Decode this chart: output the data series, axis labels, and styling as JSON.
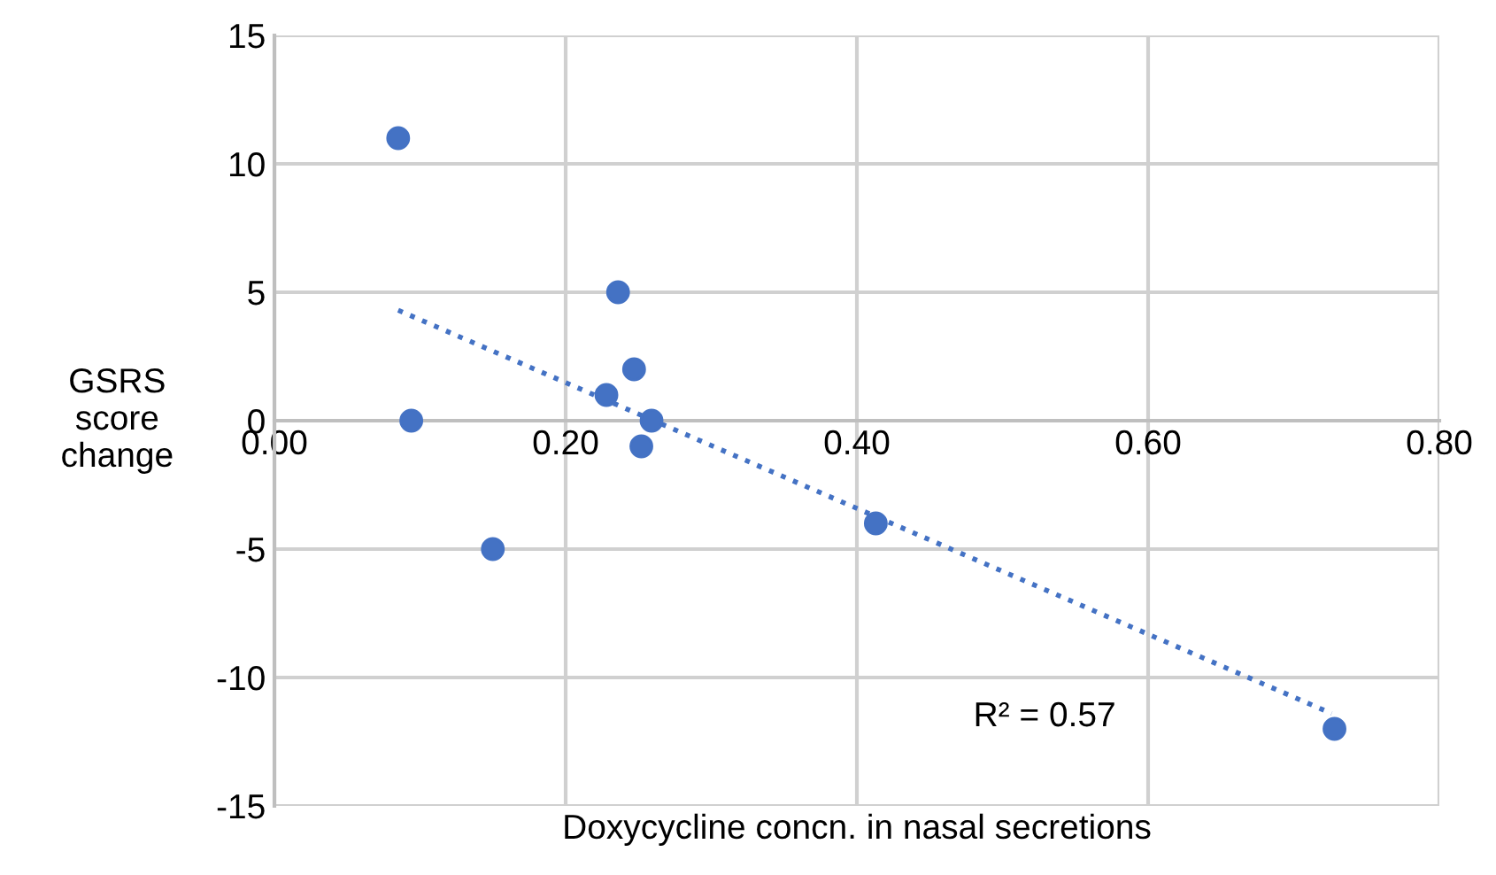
{
  "chart_data": {
    "type": "scatter",
    "xlabel": "Doxycycline concn. in nasal secretions",
    "ylabel": "GSRS\nscore\nchange",
    "xlim": [
      0,
      0.8
    ],
    "xticks": [
      {
        "value": 0,
        "label": "0.00"
      },
      {
        "value": 0.2,
        "label": "0.20"
      },
      {
        "value": 0.4,
        "label": "0.40"
      },
      {
        "value": 0.6,
        "label": "0.60"
      },
      {
        "value": 0.8,
        "label": "0.80"
      }
    ],
    "ylim": [
      -15,
      15
    ],
    "yticks": [
      -15,
      -10,
      -5,
      0,
      5,
      10,
      15
    ],
    "grid": true,
    "marker": "circle",
    "series": [
      {
        "color": "#4472c4",
        "x": [
          0.085,
          0.094,
          0.15,
          0.228,
          0.236,
          0.247,
          0.259,
          0.252,
          0.413,
          0.728
        ],
        "values": [
          11,
          0,
          -5,
          1,
          5,
          2,
          0,
          -1,
          -4,
          -12
        ]
      },
      {
        "type": "line",
        "color": "#4472c4",
        "line_style": "dotted",
        "marker": "none",
        "x": [
          0.085,
          0.726
        ],
        "values": [
          4.3,
          -11.4
        ]
      }
    ],
    "annotations": [
      "R² = 0.57"
    ]
  }
}
